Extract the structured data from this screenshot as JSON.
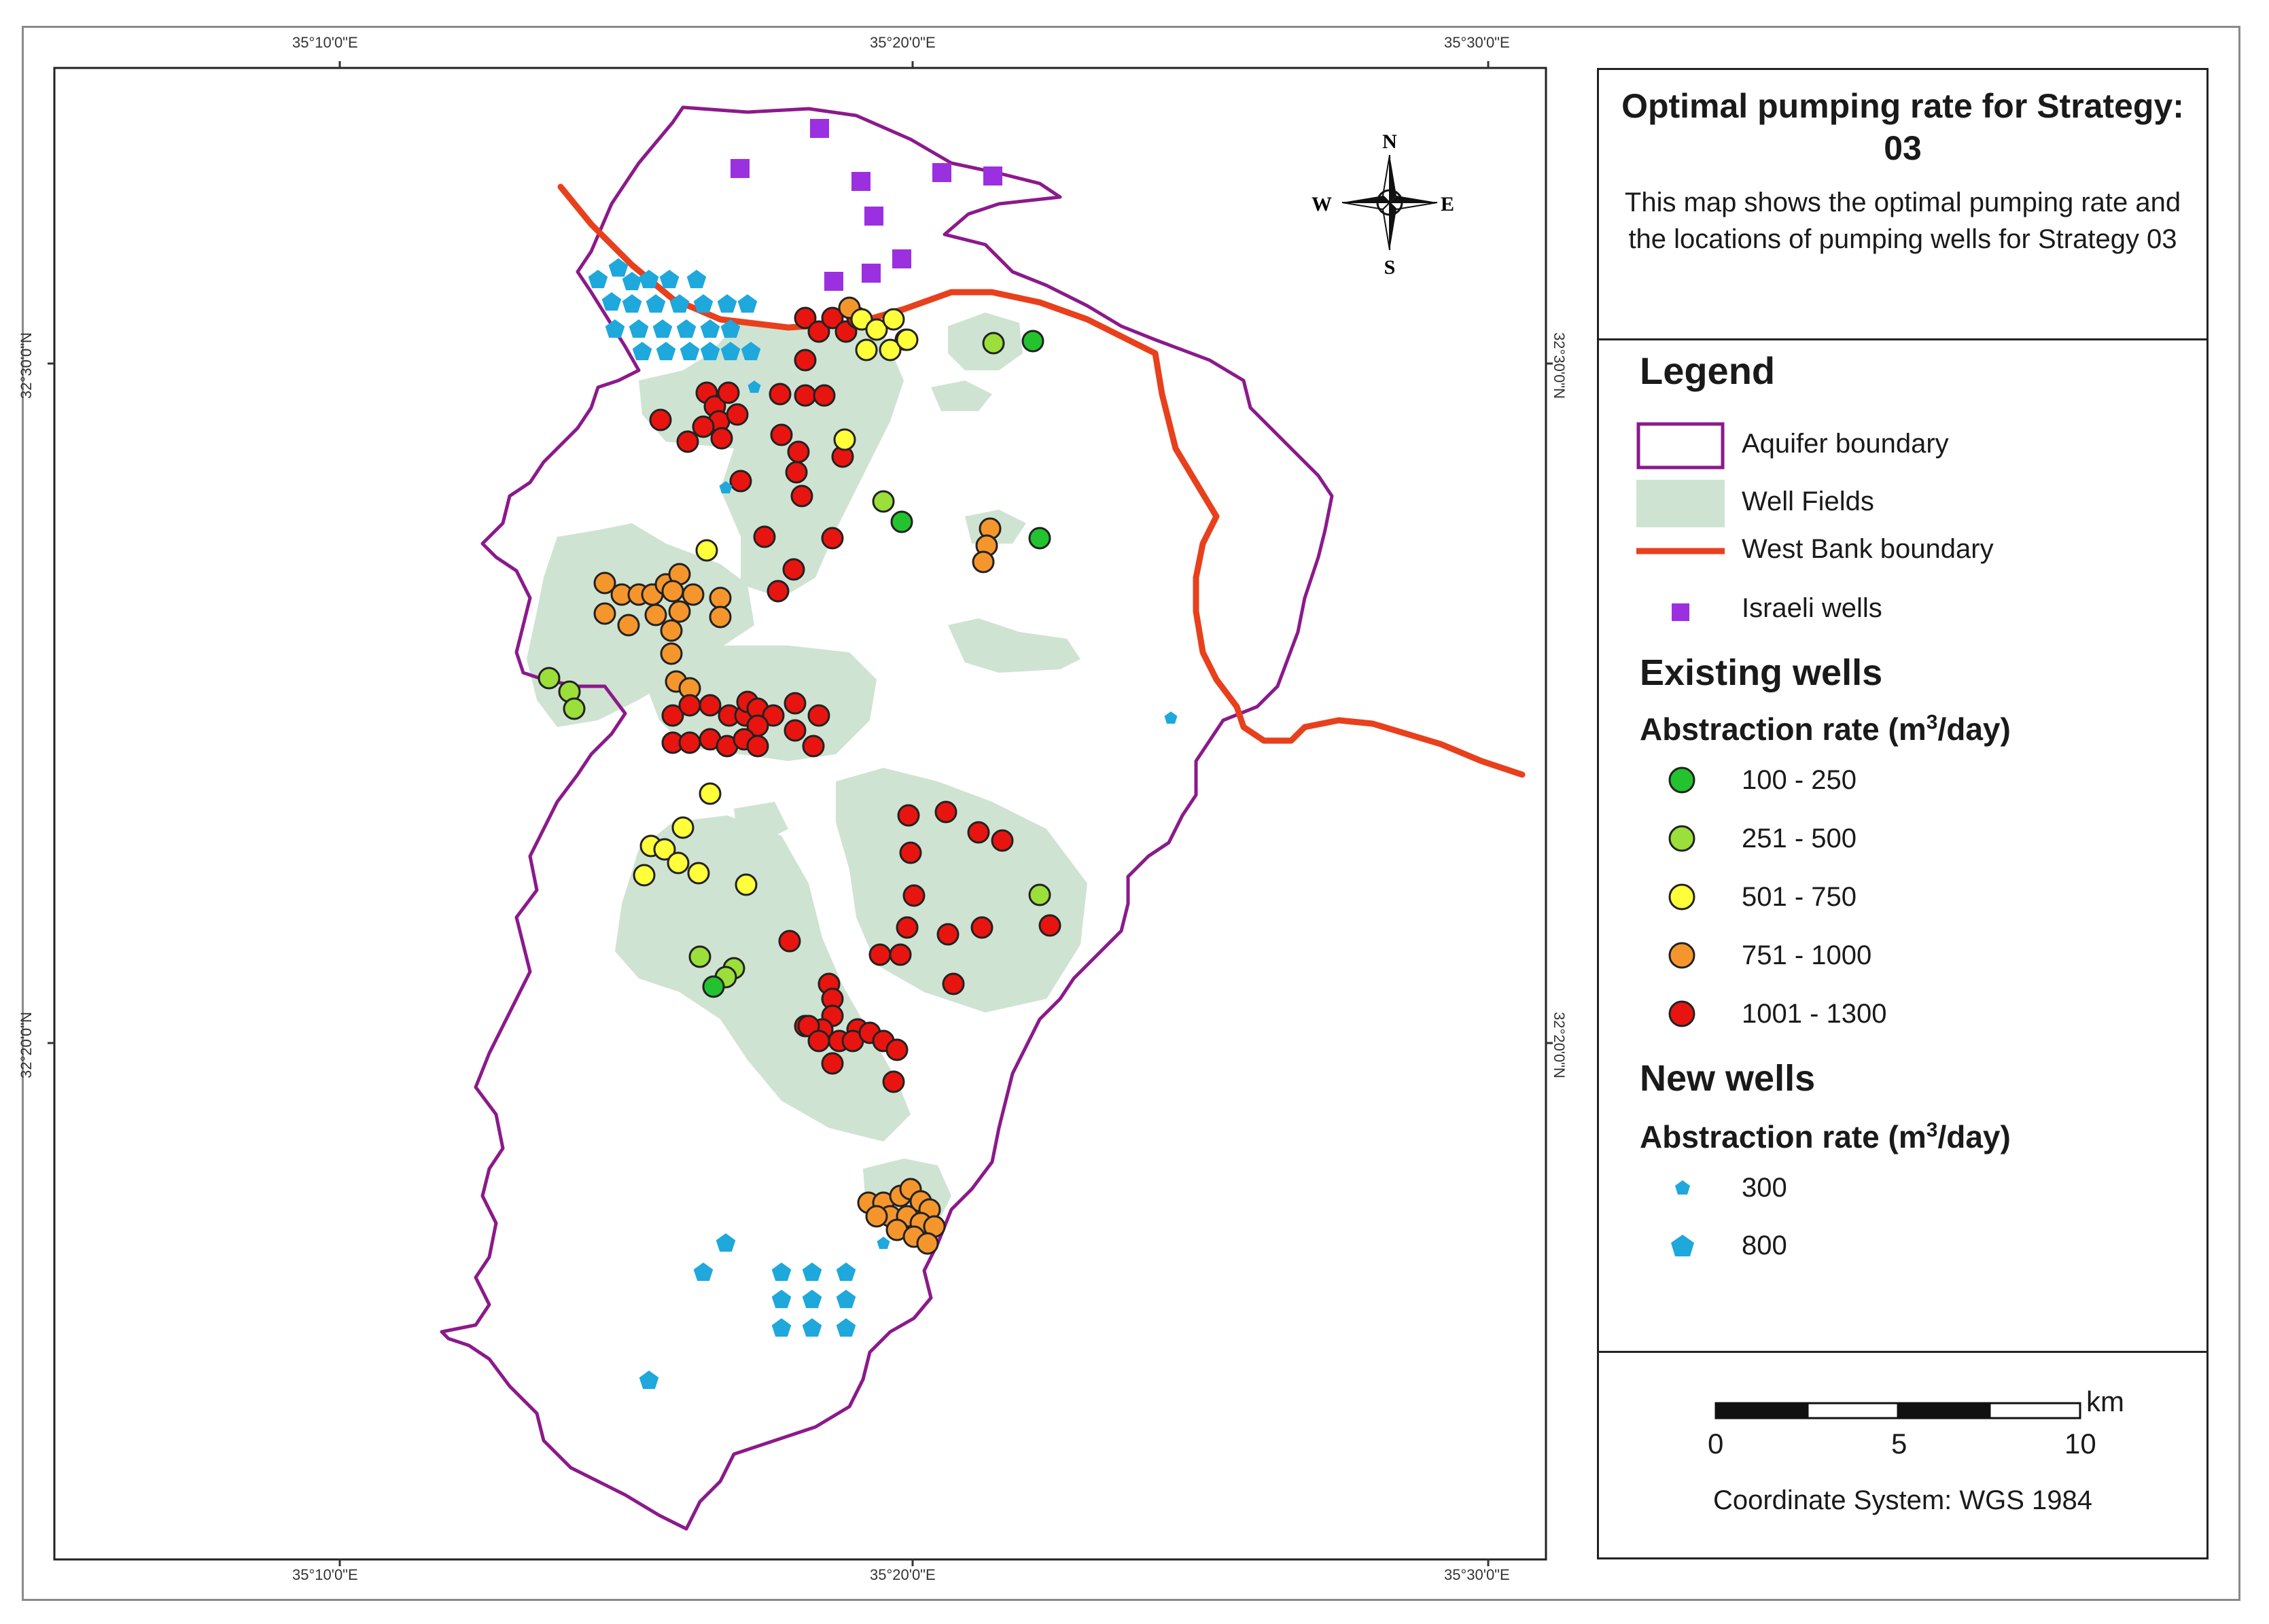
{
  "top_axis": [
    "35°10'0\"E",
    "35°20'0\"E",
    "35°30'0\"E"
  ],
  "bottom_axis": [
    "35°10'0\"E",
    "35°20'0\"E",
    "35°30'0\"E"
  ],
  "left_axis": [
    "32°30'0\"N",
    "32°20'0\"N"
  ],
  "right_axis": [
    "32°30'0\"N",
    "32°20'0\"N"
  ],
  "compass": {
    "n": "N",
    "s": "S",
    "e": "E",
    "w": "W"
  },
  "title": "Optimal pumping rate for Strategy: 03",
  "description": "This map shows the optimal pumping rate and the locations of pumping wells for Strategy 03",
  "legend": {
    "heading": "Legend",
    "items": [
      {
        "label": "Aquifer boundary",
        "color": "#8b1a8b"
      },
      {
        "label": "Well Fields",
        "color": "#cfe3d2"
      },
      {
        "label": "West Bank boundary",
        "color": "#e8401c"
      },
      {
        "label": "Israeli wells",
        "color": "#9b30e0"
      }
    ],
    "existing_heading": "Existing wells",
    "existing_rate_label": "Abstraction rate (m",
    "existing_rate_unit": "/day)",
    "existing_classes": [
      {
        "label": "100 - 250",
        "color": "#22c32e"
      },
      {
        "label": "251 - 500",
        "color": "#9adf3a"
      },
      {
        "label": "501 - 750",
        "color": "#ffff3a"
      },
      {
        "label": "751 - 1000",
        "color": "#f5962d"
      },
      {
        "label": "1001 - 1300",
        "color": "#e8140f"
      }
    ],
    "new_heading": "New wells",
    "new_rate_label": "Abstraction rate (m",
    "new_rate_unit": "/day)",
    "new_classes": [
      {
        "label": "300",
        "color": "#1ea8dc"
      },
      {
        "label": "800",
        "color": "#1ea8dc"
      }
    ],
    "superscript": "3"
  },
  "scale": {
    "ticks": [
      "0",
      "5",
      "10"
    ],
    "unit": "km"
  },
  "coordinate_system": "Coordinate System: WGS 1984"
}
